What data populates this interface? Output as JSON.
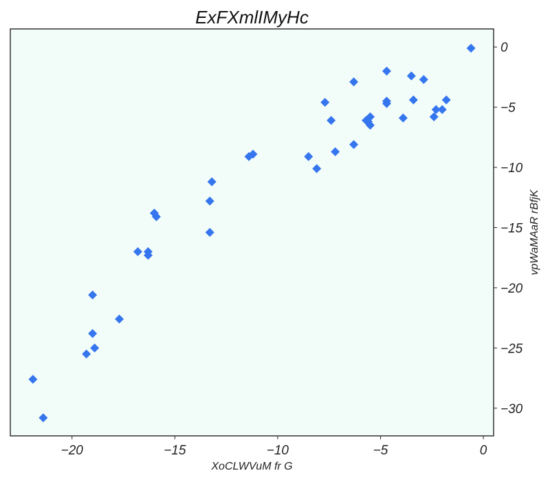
{
  "chart_data": {
    "type": "scatter",
    "title": "ExFXmlIMyHc",
    "xlabel": "XoCLWVuM fr G",
    "ylabel": "vpWaMAaR rBfjK",
    "xlim": [
      -23,
      0.5
    ],
    "ylim": [
      -32.3,
      1.5
    ],
    "x_ticks": [
      -20,
      -15,
      -10,
      -5,
      0
    ],
    "y_ticks": [
      0,
      -5,
      -10,
      -15,
      -20,
      -25,
      -30
    ],
    "x_tick_labels": [
      "−20",
      "−15",
      "−10",
      "−5",
      "0"
    ],
    "y_tick_labels": [
      "0",
      "−5",
      "−10",
      "−15",
      "−20",
      "−25",
      "−30"
    ],
    "y_axis_position": "right",
    "grid": false,
    "legend": "none",
    "marker": "diamond",
    "colors": {
      "marker": "#3575ee",
      "plot_background": "#f2fdf9",
      "axis": "#222222"
    },
    "series": [
      {
        "x": [
          -0.6,
          -4.7,
          -3.5,
          -2.9,
          -6.3,
          -4.7,
          -4.7,
          -3.4,
          -1.8,
          -7.7,
          -2.3,
          -2.0,
          -2.4,
          -3.9,
          -7.4,
          -5.5,
          -5.7,
          -5.6,
          -5.5,
          -6.3,
          -7.2,
          -8.5,
          -8.1,
          -11.4,
          -11.2,
          -13.2,
          -13.3,
          -13.3,
          -16.0,
          -15.9,
          -16.8,
          -16.3,
          -16.3,
          -17.7,
          -19.0,
          -19.0,
          -18.9,
          -19.3,
          -21.9,
          -21.4
        ],
        "y": [
          -0.1,
          -2.0,
          -2.4,
          -2.7,
          -2.9,
          -4.5,
          -4.7,
          -4.4,
          -4.4,
          -4.6,
          -5.2,
          -5.2,
          -5.8,
          -5.9,
          -6.1,
          -5.8,
          -6.1,
          -6.2,
          -6.5,
          -8.1,
          -8.7,
          -9.1,
          -10.1,
          -9.1,
          -8.9,
          -11.2,
          -12.8,
          -15.4,
          -13.8,
          -14.1,
          -17.0,
          -17.0,
          -17.3,
          -22.6,
          -20.6,
          -23.8,
          -25.0,
          -25.5,
          -27.6,
          -30.8
        ]
      }
    ]
  }
}
